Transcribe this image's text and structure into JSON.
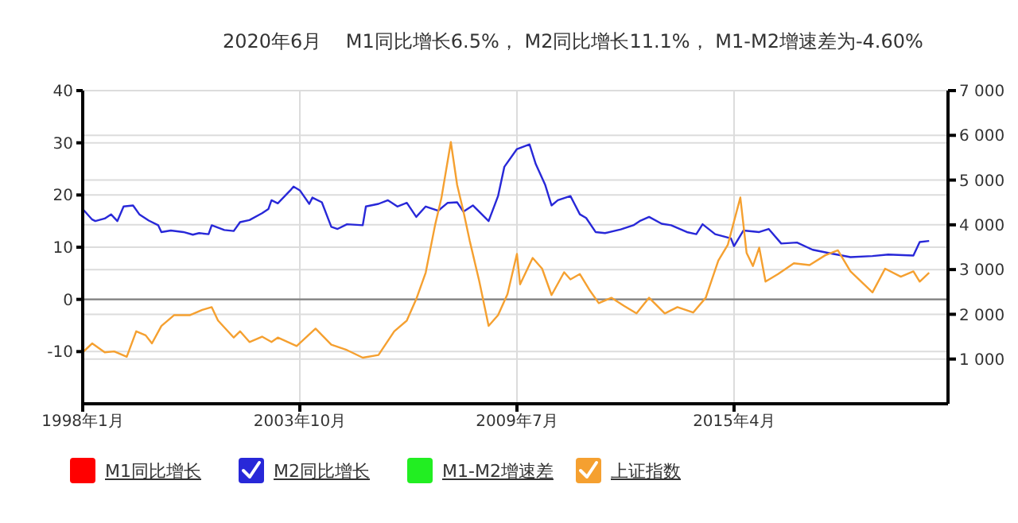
{
  "chart_data": {
    "type": "line",
    "title": "2020年6月    M1同比增长6.5%， M2同比增长11.1%， M1-M2增速差为-4.60%",
    "xlim": [
      "1998-01",
      "2020-12"
    ],
    "xticks": [
      {
        "value": "1998-01",
        "label": "1998年1月"
      },
      {
        "value": "2003-10",
        "label": "2003年10月"
      },
      {
        "value": "2009-07",
        "label": "2009年7月"
      },
      {
        "value": "2015-04",
        "label": "2015年4月"
      }
    ],
    "ylim": [
      -20,
      40
    ],
    "yticks": [
      -10,
      0,
      10,
      20,
      30,
      40
    ],
    "y2lim": [
      0,
      7000
    ],
    "y2ticks": [
      {
        "value": 1000,
        "label": "1 000"
      },
      {
        "value": 2000,
        "label": "2 000"
      },
      {
        "value": 3000,
        "label": "3 000"
      },
      {
        "value": 4000,
        "label": "4 000"
      },
      {
        "value": 5000,
        "label": "5 000"
      },
      {
        "value": 6000,
        "label": "6 000"
      },
      {
        "value": 7000,
        "label": "7 000"
      }
    ],
    "grid": true,
    "legend": "bottom",
    "marker": "none",
    "line_style": "solid",
    "ref_lines": [
      {
        "axis": "y",
        "value": 0,
        "color": "#808080"
      }
    ],
    "series": [
      {
        "name": "M1同比增长",
        "color": "#ff0000"
      },
      {
        "name": "M2同比增长",
        "color": "#2828d8",
        "x": [
          "1998-01",
          "1998-04",
          "1998-05",
          "1998-08",
          "1998-10",
          "1998-12",
          "1999-02",
          "1999-05",
          "1999-07",
          "1999-10",
          "2000-01",
          "2000-02",
          "2000-05",
          "2000-09",
          "2000-12",
          "2001-02",
          "2001-05",
          "2001-06",
          "2001-10",
          "2002-01",
          "2002-03",
          "2002-06",
          "2002-10",
          "2002-12",
          "2003-01",
          "2003-03",
          "2003-07",
          "2003-08",
          "2003-10",
          "2004-01",
          "2004-02",
          "2004-05",
          "2004-08",
          "2004-10",
          "2005-01",
          "2005-06",
          "2005-07",
          "2005-11",
          "2006-02",
          "2006-05",
          "2006-08",
          "2006-11",
          "2007-02",
          "2007-06",
          "2007-09",
          "2007-12",
          "2008-02",
          "2008-05",
          "2008-10",
          "2009-01",
          "2009-03",
          "2009-07",
          "2009-11",
          "2010-01",
          "2010-04",
          "2010-06",
          "2010-08",
          "2010-12",
          "2011-03",
          "2011-05",
          "2011-08",
          "2011-11",
          "2012-04",
          "2012-08",
          "2012-10",
          "2013-01",
          "2013-05",
          "2013-08",
          "2014-01",
          "2014-04",
          "2014-06",
          "2014-10",
          "2015-03",
          "2015-04",
          "2015-07",
          "2015-12",
          "2016-03",
          "2016-07",
          "2016-12",
          "2017-05",
          "2017-10",
          "2018-05",
          "2018-12",
          "2019-05",
          "2020-01",
          "2020-03",
          "2020-06"
        ],
        "values": [
          17.3,
          15.3,
          15.0,
          15.5,
          16.3,
          15.0,
          17.8,
          18.0,
          16.3,
          15.1,
          14.2,
          12.9,
          13.2,
          12.9,
          12.4,
          12.7,
          12.5,
          14.2,
          13.3,
          13.1,
          14.8,
          15.2,
          16.5,
          17.3,
          19.0,
          18.4,
          20.9,
          21.6,
          20.9,
          18.3,
          19.5,
          18.6,
          13.9,
          13.5,
          14.4,
          14.2,
          17.8,
          18.3,
          19.0,
          17.8,
          18.5,
          15.8,
          17.8,
          17.0,
          18.5,
          18.6,
          16.8,
          18.0,
          15.0,
          19.8,
          25.4,
          28.8,
          29.7,
          25.9,
          21.9,
          18.0,
          19.0,
          19.8,
          16.3,
          15.6,
          12.9,
          12.7,
          13.4,
          14.2,
          15.0,
          15.8,
          14.5,
          14.2,
          12.9,
          12.5,
          14.4,
          12.5,
          11.7,
          10.2,
          13.2,
          12.9,
          13.5,
          10.7,
          10.9,
          9.5,
          8.9,
          8.1,
          8.3,
          8.6,
          8.4,
          11.0,
          11.2
        ]
      },
      {
        "name": "M1-M2增速差",
        "color": "#22ee22"
      },
      {
        "name": "上证指数",
        "color": "#f5a030",
        "axis": "y2",
        "x": [
          "1998-01",
          "1998-04",
          "1998-08",
          "1998-11",
          "1999-03",
          "1999-06",
          "1999-09",
          "1999-11",
          "2000-02",
          "2000-06",
          "2000-11",
          "2001-03",
          "2001-06",
          "2001-08",
          "2002-01",
          "2002-03",
          "2002-06",
          "2002-10",
          "2003-01",
          "2003-03",
          "2003-09",
          "2004-03",
          "2004-08",
          "2005-01",
          "2005-06",
          "2005-11",
          "2006-04",
          "2006-08",
          "2006-11",
          "2007-02",
          "2007-05",
          "2007-07",
          "2007-10",
          "2007-12",
          "2008-02",
          "2008-04",
          "2008-07",
          "2008-10",
          "2009-01",
          "2009-04",
          "2009-07",
          "2009-08",
          "2009-12",
          "2010-03",
          "2010-06",
          "2010-10",
          "2010-12",
          "2011-03",
          "2011-06",
          "2011-09",
          "2012-01",
          "2012-05",
          "2012-09",
          "2013-01",
          "2013-06",
          "2013-10",
          "2014-03",
          "2014-07",
          "2014-11",
          "2015-02",
          "2015-06",
          "2015-08",
          "2015-10",
          "2015-12",
          "2016-02",
          "2016-06",
          "2016-11",
          "2017-04",
          "2017-09",
          "2018-01",
          "2018-05",
          "2018-12",
          "2019-04",
          "2019-09",
          "2020-01",
          "2020-03",
          "2020-06"
        ],
        "values": [
          1150,
          1350,
          1150,
          1170,
          1050,
          1620,
          1530,
          1350,
          1740,
          1980,
          1980,
          2100,
          2160,
          1860,
          1480,
          1620,
          1380,
          1500,
          1380,
          1480,
          1290,
          1680,
          1320,
          1200,
          1030,
          1090,
          1620,
          1860,
          2340,
          2930,
          4000,
          4600,
          5850,
          4890,
          4300,
          3640,
          2750,
          1740,
          1980,
          2450,
          3350,
          2670,
          3260,
          3020,
          2430,
          2940,
          2780,
          2900,
          2550,
          2250,
          2370,
          2190,
          2020,
          2370,
          2020,
          2160,
          2040,
          2370,
          3200,
          3550,
          4610,
          3370,
          3080,
          3490,
          2730,
          2900,
          3140,
          3100,
          3320,
          3430,
          2960,
          2490,
          3020,
          2840,
          2960,
          2730,
          2930
        ]
      }
    ]
  }
}
